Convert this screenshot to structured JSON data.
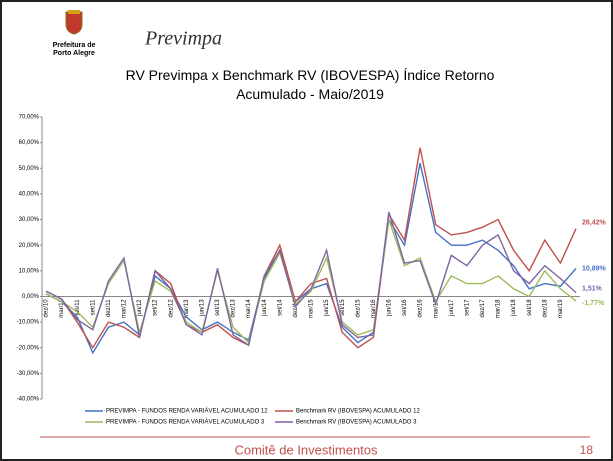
{
  "header": {
    "logo_lines": [
      "Prefeitura de",
      "Porto Alegre"
    ],
    "brand": "Previmpa"
  },
  "footer": {
    "text": "Comitê de Investimentos",
    "page": "18"
  },
  "chart_data": {
    "type": "line",
    "title": "RV Previmpa x Benchmark RV (IBOVESPA) Índice Retorno Acumulado - Maio/2019",
    "categories": [
      "dez/10",
      "mar/11",
      "jun/11",
      "set/11",
      "dez/11",
      "mar/12",
      "jun/12",
      "set/12",
      "dez/12",
      "mar/13",
      "jun/13",
      "set/13",
      "dez/13",
      "mar/14",
      "jun/14",
      "set/14",
      "dez/14",
      "mar/15",
      "jun/15",
      "set/15",
      "dez/15",
      "mar/16",
      "jun/16",
      "set/16",
      "dez/16",
      "mar/17",
      "jun/17",
      "set/17",
      "dez/17",
      "mar/18",
      "jun/18",
      "set/18",
      "dez/18",
      "mar/19",
      null
    ],
    "ylim": [
      -40,
      70
    ],
    "yticks": [
      {
        "value": 70,
        "label": "70,00%"
      },
      {
        "value": 60,
        "label": "60,00%"
      },
      {
        "value": 50,
        "label": "50,00%"
      },
      {
        "value": 40,
        "label": "40,00%"
      },
      {
        "value": 30,
        "label": "30,00%"
      },
      {
        "value": 20,
        "label": "20,00%"
      },
      {
        "value": 10,
        "label": "10,00%"
      },
      {
        "value": 0,
        "label": "0,00%"
      },
      {
        "value": -10,
        "label": "-10,00%"
      },
      {
        "value": -20,
        "label": "-20,00%"
      },
      {
        "value": -30,
        "label": "-30,00%"
      },
      {
        "value": -40,
        "label": "-40,00%"
      }
    ],
    "grid": false,
    "series": [
      {
        "name": "PREVIMPA - FUNDOS RENDA VARIÁVEL ACUMULADO 12",
        "color": "#4472c4",
        "values": [
          1,
          -2,
          -8,
          -22,
          -12,
          -10,
          -15,
          8,
          3,
          -8,
          -13,
          -10,
          -14,
          -17,
          7,
          18,
          -2,
          3,
          5,
          -12,
          -18,
          -14,
          30,
          20,
          52,
          25,
          20,
          20,
          22,
          18,
          12,
          3,
          5,
          4,
          10.89
        ],
        "end_label": "10,89%"
      },
      {
        "name": "Benchmark RV (IBOVESPA) ACUMULADO 12",
        "color": "#c0504d",
        "values": [
          2,
          -1,
          -10,
          -20,
          -10,
          -12,
          -16,
          10,
          5,
          -11,
          -14,
          -11,
          -16,
          -19,
          8,
          20,
          -2,
          5,
          7,
          -14,
          -20,
          -16,
          32,
          22,
          58,
          28,
          24,
          25,
          27,
          30,
          18,
          10,
          22,
          13,
          26.42
        ],
        "end_label": "26,42%"
      },
      {
        "name": "PREVIMPA - FUNDOS RENDA VARIÁVEL ACUMULADO 3",
        "color": "#9bbb59",
        "values": [
          1,
          -2,
          -6,
          -12,
          5,
          14,
          -14,
          6,
          2,
          -10,
          -14,
          10,
          -12,
          -18,
          6,
          17,
          -3,
          2,
          15,
          -10,
          -15,
          -13,
          30,
          12,
          15,
          -2,
          8,
          5,
          5,
          8,
          3,
          0,
          10,
          3,
          -1.77
        ],
        "end_label": "-1,77%"
      },
      {
        "name": "Benchmark RV (IBOVESPA) ACUMULADO 3",
        "color": "#8064a2",
        "values": [
          2,
          -1,
          -9,
          -13,
          6,
          15,
          -16,
          10,
          3,
          -11,
          -15,
          11,
          -15,
          -19,
          8,
          18,
          -4,
          3,
          18,
          -11,
          -16,
          -15,
          33,
          13,
          14,
          -3,
          16,
          12,
          20,
          24,
          10,
          5,
          12,
          7,
          1.51
        ],
        "end_label": "1,51%"
      }
    ]
  }
}
